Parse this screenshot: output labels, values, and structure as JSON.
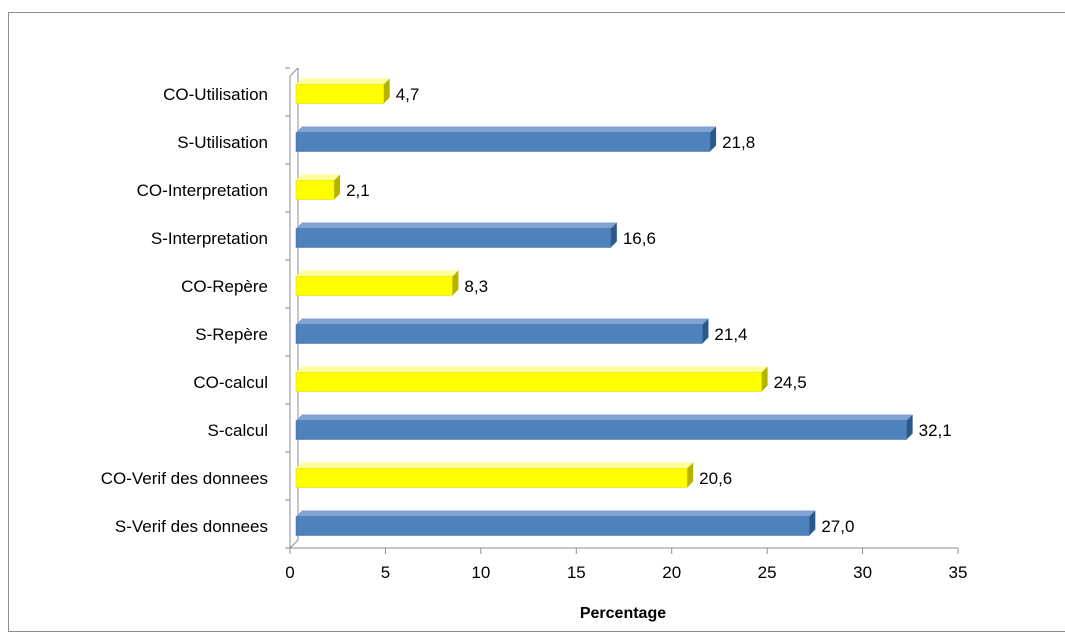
{
  "chart_data": {
    "type": "bar",
    "orientation": "horizontal",
    "style": "3d",
    "xlabel": "Percentage",
    "ylabel": "",
    "xlim": [
      0,
      35
    ],
    "x_ticks": [
      "0",
      "5",
      "10",
      "15",
      "20",
      "25",
      "30",
      "35"
    ],
    "grid": false,
    "legend": "none",
    "categories": [
      "S-Verif des donnees",
      "CO-Verif des donnees",
      "S-calcul",
      "CO-calcul",
      "S-Repère",
      "CO-Repère",
      "S-Interpretation",
      "CO-Interpretation",
      "S-Utilisation",
      "CO-Utilisation"
    ],
    "values": [
      27.0,
      20.6,
      32.1,
      24.5,
      21.4,
      8.3,
      16.6,
      2.1,
      21.8,
      4.7
    ],
    "value_labels": [
      "27,0",
      "20,6",
      "32,1",
      "24,5",
      "21,4",
      "8,3",
      "16,6",
      "2,1",
      "21,8",
      "4,7"
    ],
    "colors": {
      "S": "#4f81bd",
      "CO": "#ffff00",
      "S_dark": "#2b5a8a",
      "CO_dark": "#b3b300"
    }
  }
}
